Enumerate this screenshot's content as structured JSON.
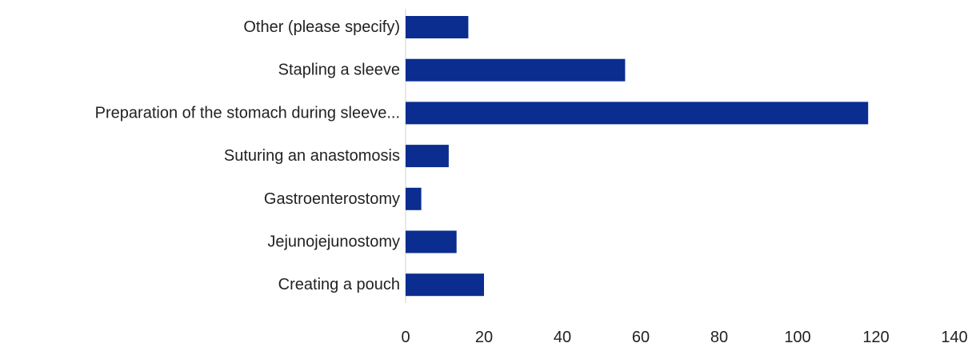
{
  "chart_data": {
    "type": "bar",
    "orientation": "horizontal",
    "title": "",
    "xlabel": "",
    "ylabel": "",
    "categories": [
      "Other (please specify)",
      "Stapling a sleeve",
      "Preparation of the stomach during sleeve...",
      "Suturing an anastomosis",
      "Gastroenterostomy",
      "Jejunojejunostomy",
      "Creating a pouch"
    ],
    "values": [
      16,
      56,
      118,
      11,
      4,
      13,
      20
    ],
    "xlim": [
      0,
      140
    ],
    "xticks": [
      0,
      20,
      40,
      60,
      80,
      100,
      120,
      140
    ],
    "bar_color": "#0a2d8f",
    "grid": false,
    "legend": "none"
  }
}
